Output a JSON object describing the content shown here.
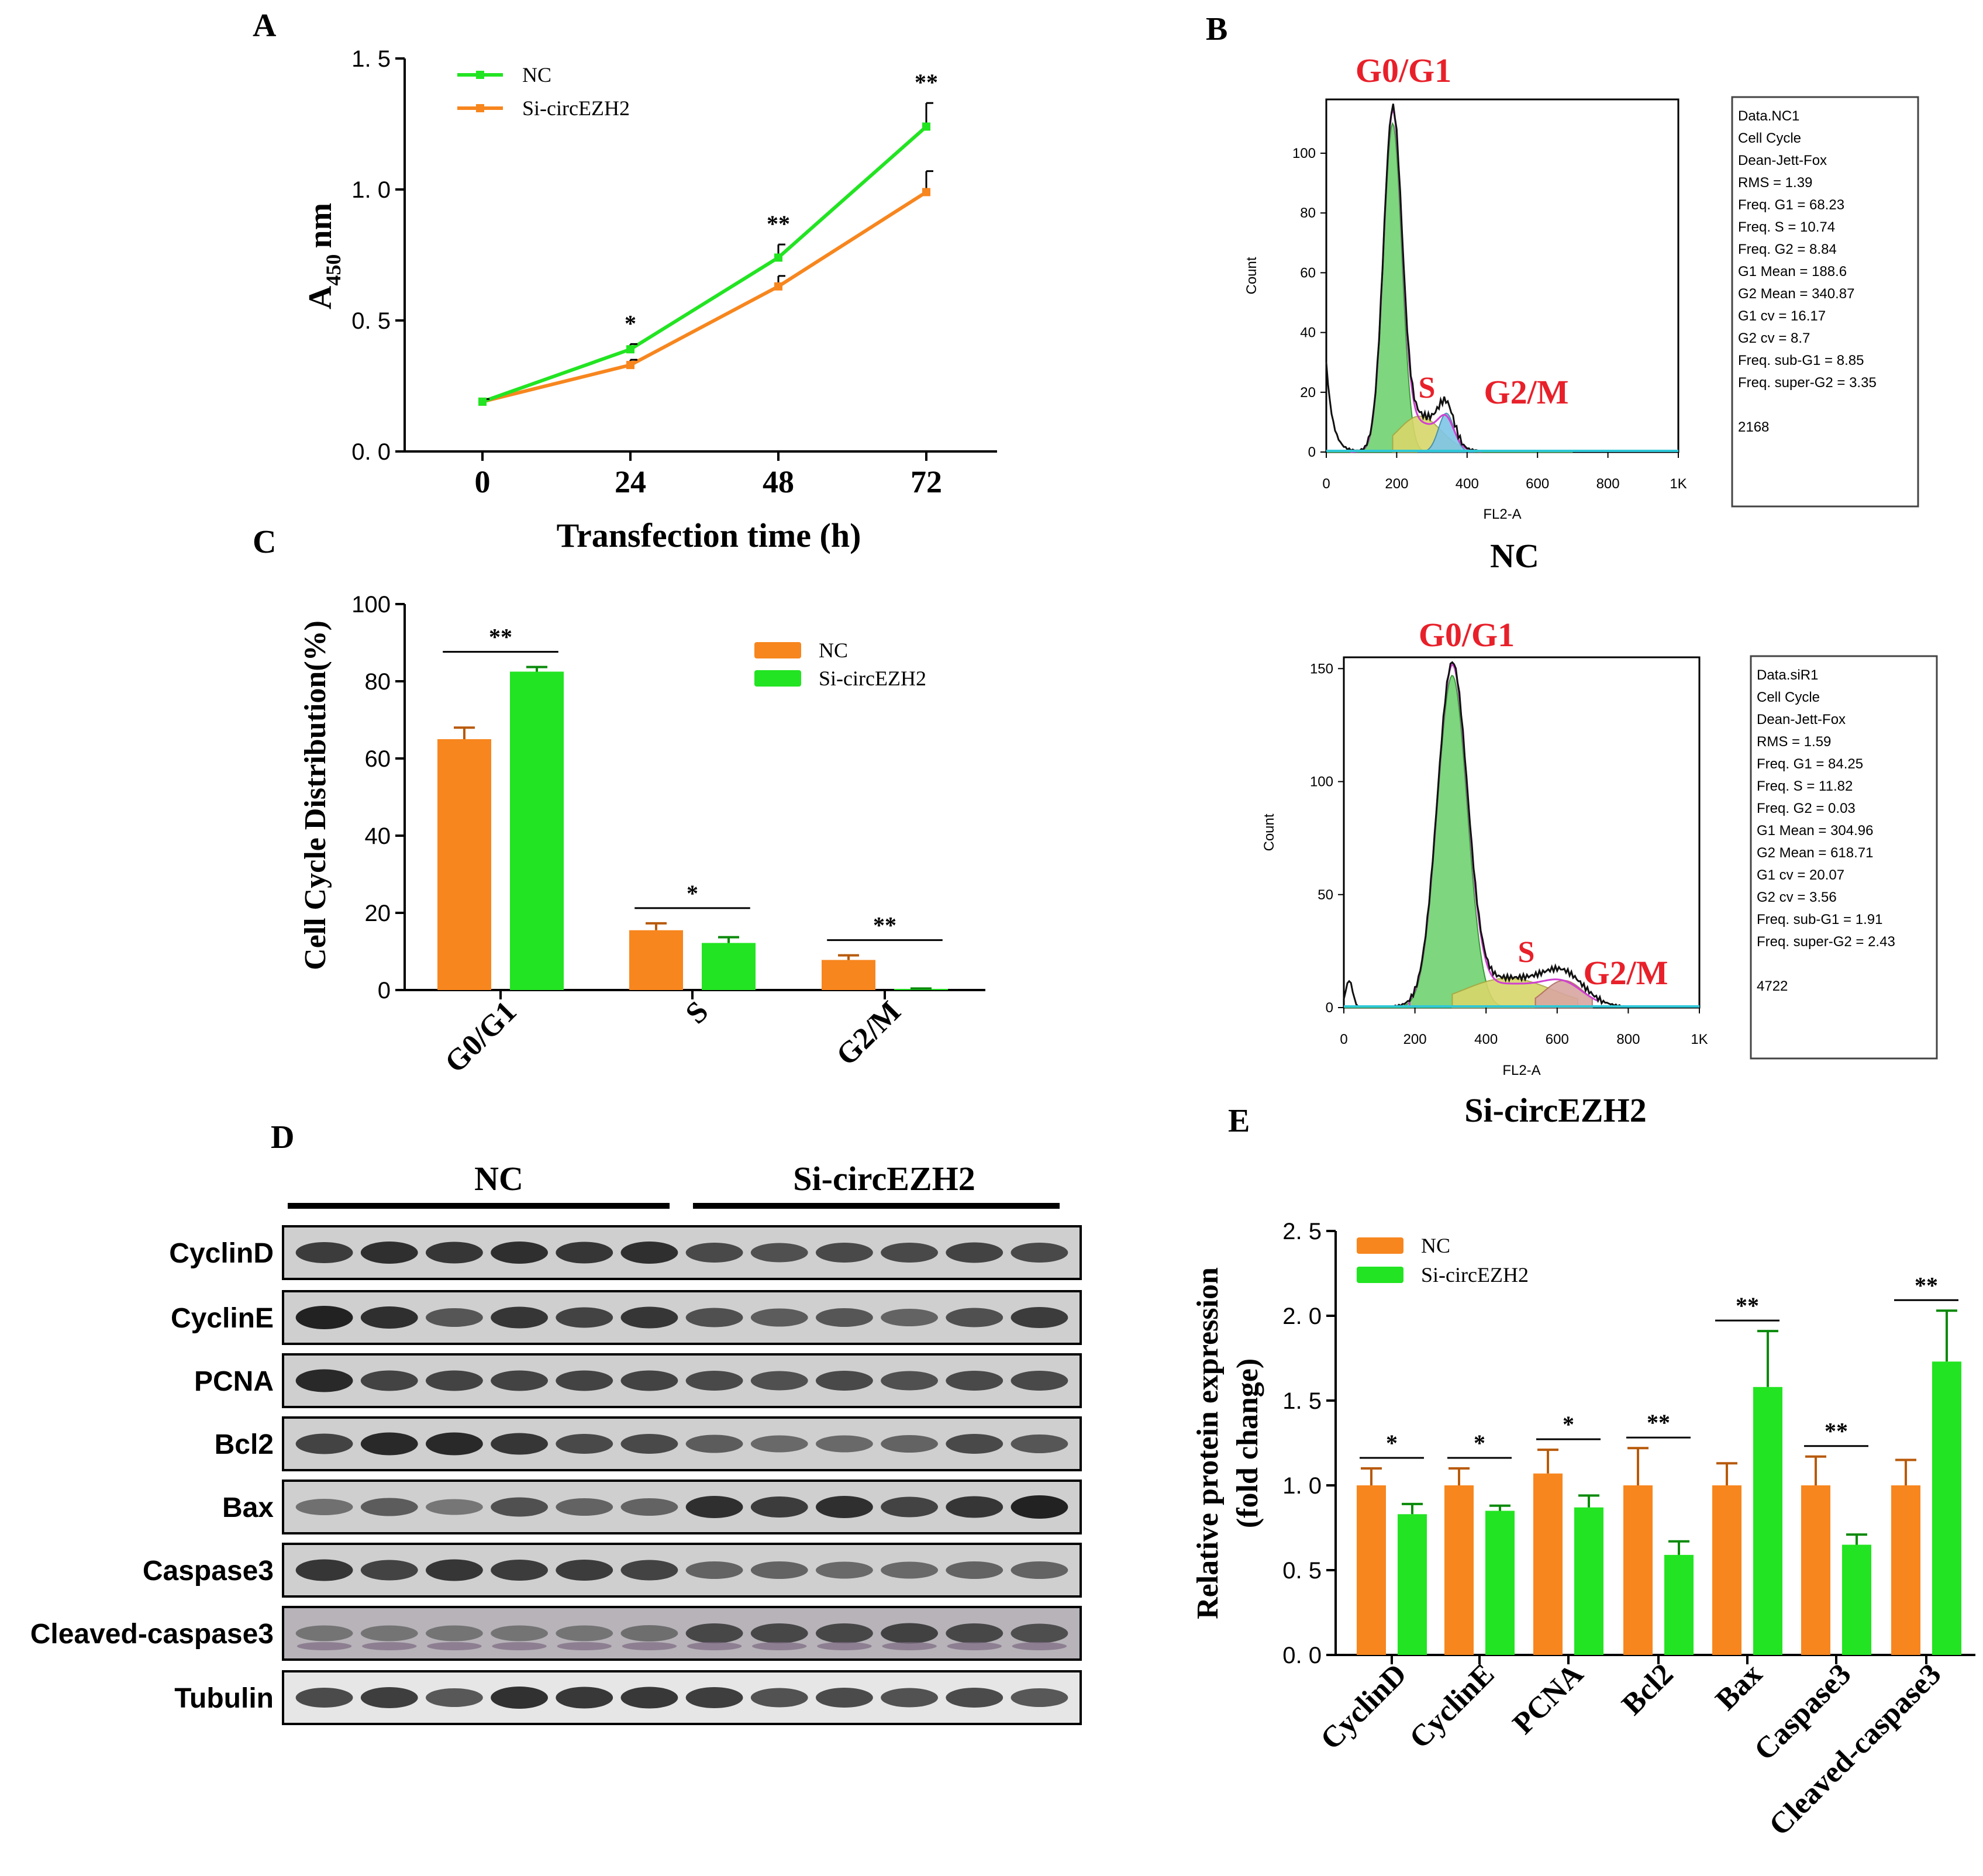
{
  "colors": {
    "nc": "#f7861e",
    "si": "#22e422",
    "red": "#e8202a"
  },
  "panel_letters": [
    "A",
    "B",
    "C",
    "D",
    "E"
  ],
  "chart_data": [
    {
      "panel": "A",
      "type": "line",
      "xlabel": "Transfection time (h)",
      "ylabel_main": "A",
      "ylabel_sub": "450",
      "ylabel_unit": "nm",
      "x": [
        0,
        24,
        48,
        72
      ],
      "x_tick_labels": [
        "0",
        "24",
        "48",
        "72"
      ],
      "ylim": [
        0,
        1.5
      ],
      "y_ticks": [
        0,
        0.5,
        1,
        1.5
      ],
      "y_tick_labels": [
        "0. 0",
        "0. 5",
        "1. 0",
        "1. 5"
      ],
      "series": [
        {
          "name": "NC",
          "color": "#22e422",
          "values": [
            0.19,
            0.39,
            0.74,
            1.24
          ],
          "errors": [
            0.01,
            0.02,
            0.05,
            0.09
          ]
        },
        {
          "name": "Si-circEZH2",
          "color": "#f7861e",
          "values": [
            0.19,
            0.33,
            0.63,
            0.99
          ],
          "errors": [
            0.01,
            0.02,
            0.04,
            0.08
          ]
        }
      ],
      "significance": [
        "",
        "*",
        "**",
        "**"
      ]
    },
    {
      "panel": "C",
      "type": "bar",
      "ylabel": "Cell Cycle Distribution(%)",
      "categories": [
        "G0/G1",
        "S",
        "G2/M"
      ],
      "ylim": [
        0,
        100
      ],
      "y_ticks": [
        0,
        20,
        40,
        60,
        80,
        100
      ],
      "y_tick_labels": [
        "0",
        "20",
        "40",
        "60",
        "80",
        "100"
      ],
      "series": [
        {
          "name": "NC",
          "color": "#f7861e",
          "values": [
            65,
            15.5,
            7.8
          ],
          "errors": [
            3,
            1.8,
            1.2
          ]
        },
        {
          "name": "Si-circEZH2",
          "color": "#22e422",
          "values": [
            82.5,
            12.2,
            0.3
          ],
          "errors": [
            1.2,
            1.5,
            0.1
          ]
        }
      ],
      "significance": [
        "**",
        "*",
        "**"
      ]
    },
    {
      "panel": "E",
      "type": "bar",
      "ylabel_line1": "Relative protein expression",
      "ylabel_line2": "(fold change)",
      "categories": [
        "CyclinD",
        "CyclinE",
        "PCNA",
        "Bcl2",
        "Bax",
        "Caspase3",
        "Cleaved-caspase3"
      ],
      "ylim": [
        0,
        2.5
      ],
      "y_ticks": [
        0,
        0.5,
        1,
        1.5,
        2,
        2.5
      ],
      "y_tick_labels": [
        "0. 0",
        "0. 5",
        "1. 0",
        "1. 5",
        "2. 0",
        "2. 5"
      ],
      "series": [
        {
          "name": "NC",
          "color": "#f7861e",
          "values": [
            1,
            1,
            1.07,
            1,
            1,
            1,
            1
          ],
          "errors": [
            0.1,
            0.1,
            0.14,
            0.22,
            0.13,
            0.17,
            0.15
          ]
        },
        {
          "name": "Si-circEZH2",
          "color": "#22e422",
          "values": [
            0.83,
            0.85,
            0.87,
            0.59,
            1.58,
            0.65,
            1.73
          ],
          "errors": [
            0.06,
            0.03,
            0.07,
            0.08,
            0.33,
            0.06,
            0.3
          ]
        }
      ],
      "significance": [
        "*",
        "*",
        "*",
        "**",
        "**",
        "**",
        "**"
      ]
    },
    {
      "panel": "B",
      "type": "histogram",
      "xlabel": "FL2-A",
      "ylabel": "Count",
      "plots": [
        {
          "title": "NC",
          "y_tick_labels": [
            "0",
            "20",
            "40",
            "60",
            "80",
            "100"
          ],
          "y_ticks": [
            0,
            20,
            40,
            60,
            80,
            100
          ],
          "ymax": 118,
          "x_tick_labels": [
            "0",
            "200",
            "400",
            "600",
            "800",
            "1K"
          ],
          "g1_mean": 188.6,
          "g1_peak": 110,
          "g2_mean": 340.87,
          "g2_peak": 13,
          "phase_labels": {
            "g0g1": "G0/G1",
            "s": "S",
            "g2m": "G2/M"
          },
          "stats": [
            "Data.NC1",
            "Cell Cycle",
            "Dean-Jett-Fox",
            "RMS  = 1.39",
            "Freq. G1  = 68.23",
            "Freq. S = 10.74",
            "Freq. G2  = 8.84",
            "G1 Mean  = 188.6",
            "G2 Mean  = 340.87",
            "G1 cv  = 16.17",
            "G2 cv = 8.7",
            "Freq. sub-G1  = 8.85",
            "Freq. super-G2 = 3.35",
            "",
            "2168"
          ]
        },
        {
          "title": "Si-circEZH2",
          "y_tick_labels": [
            "0",
            "50",
            "100",
            "150"
          ],
          "y_ticks": [
            0,
            50,
            100,
            150
          ],
          "ymax": 155,
          "x_tick_labels": [
            "0",
            "200",
            "400",
            "600",
            "800",
            "1K"
          ],
          "g1_mean": 304.96,
          "g1_peak": 147,
          "g2_mean": 618.71,
          "g2_peak": 12,
          "phase_labels": {
            "g0g1": "G0/G1",
            "s": "S",
            "g2m": "G2/M"
          },
          "stats": [
            "Data.siR1",
            "Cell Cycle",
            "Dean-Jett-Fox",
            "RMS  = 1.59",
            "Freq. G1  = 84.25",
            "Freq. S = 11.82",
            "Freq. G2  = 0.03",
            "G1 Mean  = 304.96",
            "G2 Mean  = 618.71",
            "G1 cv  = 20.07",
            "G2 cv = 3.56",
            "Freq. sub-G1  = 1.91",
            "Freq. super-G2 = 2.43",
            "",
            "4722"
          ]
        }
      ]
    },
    {
      "panel": "D",
      "type": "western_blot",
      "groups": [
        "NC",
        "Si-circEZH2"
      ],
      "bands": [
        "CyclinD",
        "CyclinE",
        "PCNA",
        "Bcl2",
        "Bax",
        "Caspase3",
        "Cleaved-caspase3",
        "Tubulin"
      ],
      "lanes_per_group": 6
    }
  ]
}
